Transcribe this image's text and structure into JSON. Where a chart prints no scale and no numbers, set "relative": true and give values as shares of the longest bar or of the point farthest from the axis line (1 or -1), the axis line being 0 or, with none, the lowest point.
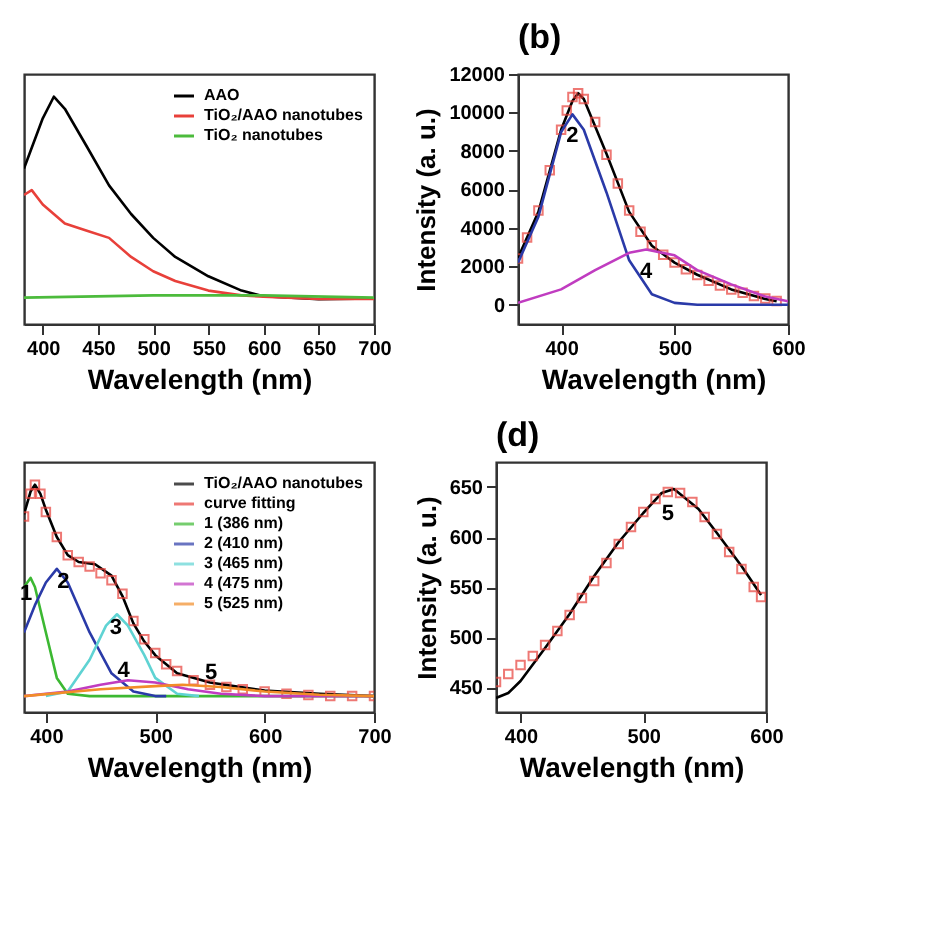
{
  "chart_data": [
    {
      "type": "line",
      "xlabel": "Wavelength (nm)",
      "relative": true,
      "xlim": [
        383,
        700
      ],
      "xticks": [
        400,
        450,
        500,
        550,
        600,
        650,
        700
      ],
      "legend": "top right",
      "series": [
        {
          "name": "AAO",
          "color": "#000000",
          "x": [
            383,
            400,
            410,
            420,
            440,
            460,
            480,
            500,
            520,
            550,
            580,
            600,
            650,
            700
          ],
          "values": [
            0.684,
            0.905,
            1.0,
            0.947,
            0.78,
            0.61,
            0.484,
            0.379,
            0.295,
            0.21,
            0.147,
            0.122,
            0.109,
            0.112
          ]
        },
        {
          "name": "TiO₂/AAO nanotubes",
          "color": "#e8403a",
          "x": [
            383,
            390,
            400,
            420,
            440,
            460,
            480,
            500,
            520,
            550,
            580,
            600,
            650,
            700
          ],
          "values": [
            0.568,
            0.589,
            0.526,
            0.442,
            0.41,
            0.379,
            0.295,
            0.232,
            0.189,
            0.147,
            0.126,
            0.12,
            0.11,
            0.11
          ]
        },
        {
          "name": "TiO₂ nanotubes",
          "color": "#4cbb3c",
          "x": [
            383,
            500,
            600,
            700
          ],
          "values": [
            0.116,
            0.126,
            0.126,
            0.116
          ]
        }
      ]
    },
    {
      "type": "line",
      "title": "(b)",
      "xlabel": "Wavelength (nm)",
      "ylabel": "Intensity (a. u.)",
      "xlim": [
        362,
        600
      ],
      "xticks": [
        400,
        500,
        600
      ],
      "ylim": [
        -1000,
        12000
      ],
      "yticks": [
        0,
        2000,
        4000,
        6000,
        8000,
        10000,
        12000
      ],
      "annotations": [
        {
          "text": "2",
          "x": 410,
          "y": 9900
        },
        {
          "text": "4",
          "x": 475,
          "y": 2870
        }
      ],
      "series": [
        {
          "color": "#000000",
          "x": [
            362,
            380,
            400,
            410,
            415,
            420,
            440,
            460,
            480,
            500,
            520,
            550,
            580,
            590
          ],
          "values": [
            2440,
            4830,
            9100,
            10600,
            11000,
            10700,
            7850,
            4830,
            3070,
            2190,
            1560,
            800,
            300,
            180
          ]
        },
        {
          "color": "#e8403a",
          "type": "scatter",
          "marker": "square",
          "x": [
            362,
            370,
            380,
            390,
            400,
            405,
            410,
            415,
            420,
            430,
            440,
            450,
            460,
            470,
            480,
            490,
            500,
            510,
            520,
            530,
            540,
            550,
            560,
            570,
            580,
            590
          ],
          "values": [
            2400,
            3500,
            4900,
            7000,
            9100,
            10100,
            10800,
            11000,
            10700,
            9500,
            7800,
            6300,
            4900,
            3800,
            3100,
            2600,
            2200,
            1850,
            1550,
            1250,
            1000,
            800,
            620,
            450,
            320,
            200
          ]
        },
        {
          "color": "#2a3aa8",
          "x": [
            362,
            380,
            400,
            410,
            420,
            440,
            460,
            480,
            500,
            520,
            600
          ],
          "values": [
            2190,
            4580,
            8980,
            9900,
            9100,
            5840,
            2310,
            550,
            100,
            0,
            0
          ]
        },
        {
          "color": "#c03cc0",
          "x": [
            362,
            400,
            430,
            460,
            475,
            500,
            520,
            550,
            580,
            600
          ],
          "values": [
            100,
            800,
            1800,
            2700,
            2870,
            2570,
            1800,
            1060,
            430,
            180
          ]
        }
      ]
    },
    {
      "type": "line",
      "xlabel": "Wavelength (nm)",
      "relative": true,
      "xlim": [
        380,
        700
      ],
      "xticks": [
        400,
        500,
        600,
        700
      ],
      "legend": "top right",
      "annotations": [
        {
          "text": "1",
          "x": 382,
          "y": 0.52
        },
        {
          "text": "2",
          "x": 416,
          "y": 0.57
        },
        {
          "text": "3",
          "x": 464,
          "y": 0.37
        },
        {
          "text": "4",
          "x": 471,
          "y": 0.18
        },
        {
          "text": "5",
          "x": 551,
          "y": 0.17
        }
      ],
      "series": [
        {
          "name": "TiO₂/AAO nanotubes",
          "color": "#000000",
          "x": [
            380,
            386,
            390,
            395,
            400,
            410,
            420,
            430,
            445,
            460,
            470,
            480,
            490,
            500,
            520,
            550,
            600,
            650,
            700
          ],
          "values": [
            0.87,
            0.97,
            1.0,
            0.96,
            0.89,
            0.77,
            0.69,
            0.66,
            0.65,
            0.6,
            0.51,
            0.39,
            0.31,
            0.25,
            0.17,
            0.13,
            0.094,
            0.08,
            0.07
          ]
        },
        {
          "name": "curve fitting",
          "color": "#e8403a",
          "type": "scatter",
          "marker": "square",
          "x": [
            380,
            386,
            390,
            395,
            400,
            410,
            420,
            430,
            440,
            450,
            460,
            470,
            480,
            490,
            500,
            510,
            520,
            535,
            550,
            565,
            580,
            600,
            620,
            640,
            660,
            680,
            700
          ],
          "values": [
            0.86,
            0.96,
            1.0,
            0.96,
            0.88,
            0.77,
            0.69,
            0.66,
            0.64,
            0.61,
            0.58,
            0.52,
            0.4,
            0.32,
            0.26,
            0.21,
            0.18,
            0.14,
            0.12,
            0.11,
            0.1,
            0.09,
            0.08,
            0.075,
            0.07,
            0.07,
            0.07
          ]
        },
        {
          "name": "1 (386 nm)",
          "color": "#3cb832",
          "x": [
            380,
            386,
            390,
            400,
            410,
            420,
            440,
            500,
            700
          ],
          "values": [
            0.55,
            0.59,
            0.55,
            0.35,
            0.15,
            0.08,
            0.07,
            0.07,
            0.07
          ]
        },
        {
          "name": "2 (410 nm)",
          "color": "#2a3aa8",
          "x": [
            380,
            390,
            400,
            410,
            420,
            440,
            460,
            480,
            500,
            510
          ],
          "values": [
            0.35,
            0.47,
            0.57,
            0.63,
            0.57,
            0.35,
            0.17,
            0.09,
            0.07,
            0.07
          ]
        },
        {
          "name": "3 (465 nm)",
          "color": "#5fd3d3",
          "x": [
            400,
            420,
            440,
            455,
            465,
            475,
            490,
            500,
            520,
            540
          ],
          "values": [
            0.07,
            0.09,
            0.23,
            0.38,
            0.43,
            0.38,
            0.25,
            0.15,
            0.08,
            0.07
          ]
        },
        {
          "name": "4 (475 nm)",
          "color": "#c03cc0",
          "x": [
            380,
            420,
            450,
            475,
            500,
            530,
            560,
            600,
            700
          ],
          "values": [
            0.07,
            0.09,
            0.12,
            0.14,
            0.13,
            0.1,
            0.08,
            0.07,
            0.07
          ]
        },
        {
          "name": "5 (525 nm)",
          "color": "#f28c28",
          "x": [
            380,
            450,
            500,
            525,
            560,
            600,
            650,
            700
          ],
          "values": [
            0.07,
            0.1,
            0.114,
            0.12,
            0.11,
            0.09,
            0.076,
            0.07
          ]
        }
      ]
    },
    {
      "type": "line",
      "title": "(d)",
      "xlabel": "Wavelength (nm)",
      "ylabel": "Intensity (a. u.)",
      "xlim": [
        380,
        600
      ],
      "xticks": [
        400,
        500,
        600
      ],
      "ylim": [
        425,
        675
      ],
      "yticks": [
        450,
        500,
        550,
        600,
        650
      ],
      "annotations": [
        {
          "text": "5",
          "x": 520,
          "y": 645
        }
      ],
      "series": [
        {
          "color": "#000000",
          "x": [
            380,
            390,
            400,
            420,
            440,
            460,
            480,
            500,
            515,
            525,
            530,
            545,
            560,
            580,
            596
          ],
          "values": [
            439,
            444,
            456,
            489,
            523,
            561,
            595,
            624,
            644,
            648,
            643,
            628,
            604,
            571,
            542
          ]
        },
        {
          "color": "#e8403a",
          "type": "scatter",
          "marker": "square",
          "x": [
            380,
            390,
            400,
            410,
            420,
            430,
            440,
            450,
            460,
            470,
            480,
            490,
            500,
            510,
            520,
            530,
            540,
            550,
            560,
            570,
            580,
            590,
            596
          ],
          "values": [
            455,
            463,
            472,
            481,
            492,
            506,
            522,
            539,
            556,
            574,
            593,
            610,
            625,
            638,
            645,
            644,
            635,
            620,
            603,
            585,
            568,
            550,
            540
          ]
        }
      ]
    }
  ]
}
